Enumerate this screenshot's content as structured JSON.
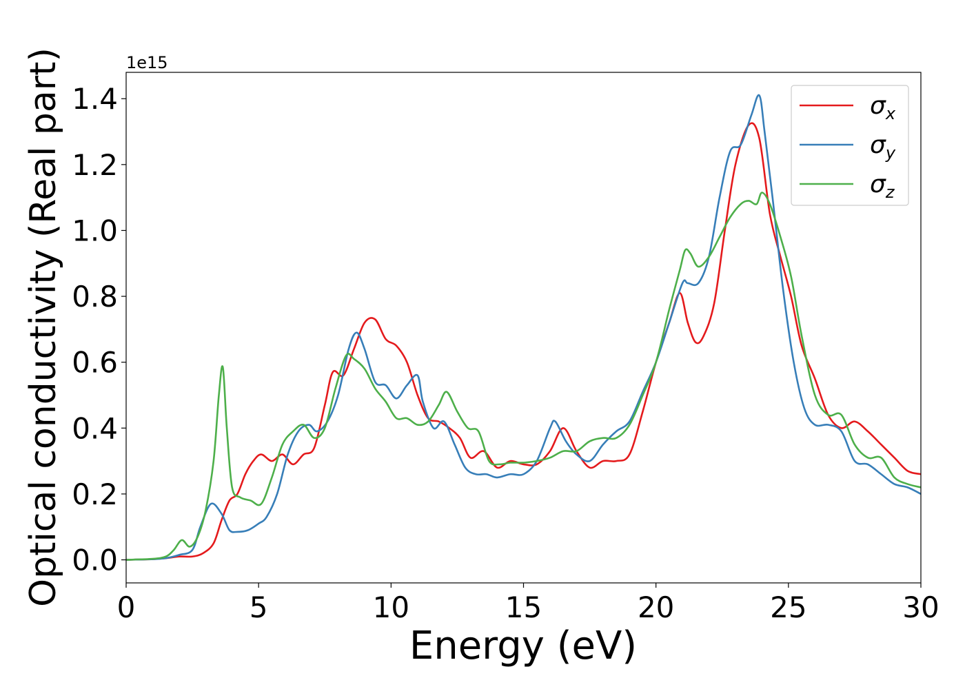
{
  "chart_data": {
    "type": "line",
    "xlabel": "Energy (eV)",
    "ylabel": "Optical conductivity (Real part)",
    "offset_text": "1e15",
    "xlim": [
      0,
      30
    ],
    "ylim": [
      -0.07,
      1.48
    ],
    "y_scale_factor": "1e15",
    "xticks": [
      0,
      5,
      10,
      15,
      20,
      25,
      30
    ],
    "xtick_labels": [
      "0",
      "5",
      "10",
      "15",
      "20",
      "25",
      "30"
    ],
    "yticks": [
      0.0,
      0.2,
      0.4,
      0.6,
      0.8,
      1.0,
      1.2,
      1.4
    ],
    "ytick_labels": [
      "0.0",
      "0.2",
      "0.4",
      "0.6",
      "0.8",
      "1.0",
      "1.2",
      "1.4"
    ],
    "grid": false,
    "legend_position": "top-right",
    "series": [
      {
        "name": "σx",
        "color": "#e41a1c",
        "x": [
          0,
          1,
          1.5,
          2,
          2.5,
          2.9,
          3.3,
          3.6,
          3.9,
          4.2,
          4.5,
          4.8,
          5.1,
          5.5,
          5.9,
          6.3,
          6.7,
          7.1,
          7.5,
          7.8,
          8.2,
          8.6,
          9.0,
          9.4,
          9.8,
          10.2,
          10.6,
          11.0,
          11.4,
          11.8,
          12.2,
          12.6,
          13.0,
          13.5,
          14.0,
          14.5,
          15.0,
          15.5,
          16.0,
          16.5,
          17.0,
          17.5,
          18.0,
          18.5,
          19.0,
          19.5,
          20.0,
          20.5,
          20.9,
          21.2,
          21.5,
          21.8,
          22.2,
          22.6,
          23.0,
          23.5,
          23.9,
          24.3,
          24.7,
          25.1,
          25.5,
          26.0,
          26.5,
          27.0,
          27.5,
          28.0,
          28.5,
          29.0,
          29.5,
          30.0
        ],
        "values": [
          0,
          0.002,
          0.005,
          0.01,
          0.01,
          0.02,
          0.05,
          0.12,
          0.18,
          0.2,
          0.26,
          0.3,
          0.32,
          0.3,
          0.32,
          0.29,
          0.32,
          0.34,
          0.47,
          0.57,
          0.56,
          0.64,
          0.72,
          0.73,
          0.67,
          0.65,
          0.6,
          0.5,
          0.43,
          0.42,
          0.4,
          0.37,
          0.31,
          0.33,
          0.28,
          0.3,
          0.29,
          0.29,
          0.33,
          0.4,
          0.33,
          0.28,
          0.3,
          0.3,
          0.32,
          0.45,
          0.6,
          0.72,
          0.81,
          0.72,
          0.66,
          0.68,
          0.78,
          1.0,
          1.2,
          1.32,
          1.28,
          1.05,
          0.92,
          0.8,
          0.65,
          0.55,
          0.44,
          0.4,
          0.42,
          0.39,
          0.35,
          0.31,
          0.27,
          0.26
        ]
      },
      {
        "name": "σy",
        "color": "#377eb8",
        "x": [
          0,
          1,
          1.5,
          2,
          2.5,
          2.8,
          3.2,
          3.6,
          3.9,
          4.2,
          4.6,
          5.0,
          5.3,
          5.7,
          6.1,
          6.5,
          6.9,
          7.2,
          7.6,
          8.0,
          8.4,
          8.7,
          9.0,
          9.4,
          9.8,
          10.2,
          10.6,
          11.0,
          11.2,
          11.6,
          12.0,
          12.4,
          12.8,
          13.2,
          13.6,
          14.0,
          14.5,
          15.0,
          15.5,
          16.0,
          16.2,
          16.6,
          17.0,
          17.5,
          18.0,
          18.5,
          19.0,
          19.5,
          20.0,
          20.5,
          21.0,
          21.2,
          21.6,
          22.0,
          22.4,
          22.8,
          23.2,
          23.6,
          23.9,
          24.1,
          24.4,
          24.8,
          25.2,
          25.6,
          26.0,
          26.5,
          27.0,
          27.5,
          28.0,
          28.5,
          29.0,
          29.5,
          30.0
        ],
        "values": [
          0,
          0.002,
          0.005,
          0.015,
          0.03,
          0.1,
          0.17,
          0.14,
          0.09,
          0.085,
          0.09,
          0.11,
          0.13,
          0.2,
          0.32,
          0.39,
          0.41,
          0.39,
          0.42,
          0.5,
          0.64,
          0.69,
          0.64,
          0.54,
          0.53,
          0.49,
          0.53,
          0.56,
          0.48,
          0.4,
          0.42,
          0.35,
          0.28,
          0.26,
          0.26,
          0.25,
          0.26,
          0.26,
          0.3,
          0.4,
          0.42,
          0.36,
          0.32,
          0.3,
          0.35,
          0.39,
          0.42,
          0.51,
          0.6,
          0.72,
          0.84,
          0.84,
          0.84,
          0.92,
          1.1,
          1.24,
          1.26,
          1.35,
          1.41,
          1.3,
          1.1,
          0.82,
          0.6,
          0.46,
          0.41,
          0.41,
          0.39,
          0.3,
          0.29,
          0.26,
          0.23,
          0.22,
          0.2
        ]
      },
      {
        "name": "σz",
        "color": "#4daf4a",
        "x": [
          0,
          1,
          1.5,
          1.8,
          2.1,
          2.4,
          2.7,
          3.0,
          3.3,
          3.5,
          3.65,
          3.8,
          4.0,
          4.3,
          4.7,
          5.1,
          5.5,
          5.9,
          6.3,
          6.7,
          7.1,
          7.5,
          7.9,
          8.3,
          8.6,
          9.0,
          9.4,
          9.8,
          10.2,
          10.6,
          11.0,
          11.4,
          11.8,
          12.1,
          12.5,
          12.9,
          13.3,
          13.7,
          14.1,
          14.5,
          15.0,
          15.5,
          16.0,
          16.5,
          17.0,
          17.5,
          18.0,
          18.5,
          19.0,
          19.5,
          20.0,
          20.5,
          20.9,
          21.1,
          21.3,
          21.6,
          22.0,
          22.4,
          22.8,
          23.2,
          23.5,
          23.8,
          24.0,
          24.3,
          24.7,
          25.1,
          25.5,
          26.0,
          26.5,
          27.0,
          27.5,
          28.0,
          28.5,
          29.0,
          29.5,
          30.0
        ],
        "values": [
          0,
          0.003,
          0.01,
          0.03,
          0.06,
          0.04,
          0.07,
          0.15,
          0.3,
          0.5,
          0.585,
          0.4,
          0.22,
          0.19,
          0.18,
          0.17,
          0.25,
          0.35,
          0.39,
          0.41,
          0.37,
          0.4,
          0.52,
          0.62,
          0.61,
          0.58,
          0.52,
          0.48,
          0.43,
          0.43,
          0.41,
          0.42,
          0.47,
          0.51,
          0.45,
          0.4,
          0.39,
          0.3,
          0.29,
          0.295,
          0.295,
          0.3,
          0.31,
          0.33,
          0.33,
          0.36,
          0.37,
          0.37,
          0.41,
          0.5,
          0.6,
          0.76,
          0.88,
          0.94,
          0.93,
          0.89,
          0.92,
          0.98,
          1.04,
          1.08,
          1.09,
          1.08,
          1.115,
          1.08,
          0.98,
          0.86,
          0.68,
          0.5,
          0.44,
          0.44,
          0.35,
          0.31,
          0.31,
          0.25,
          0.23,
          0.22
        ]
      }
    ]
  }
}
